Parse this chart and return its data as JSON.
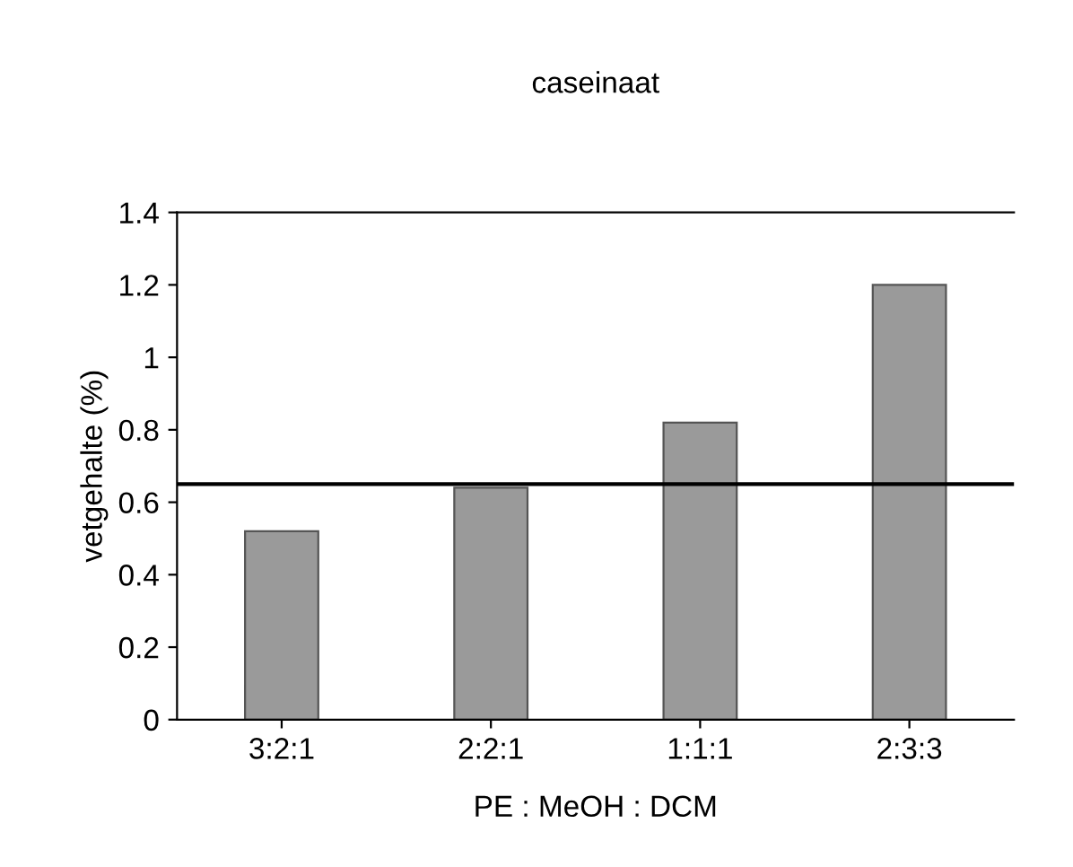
{
  "chart_data": {
    "type": "bar",
    "title": "caseinaat",
    "xlabel": "PE : MeOH : DCM",
    "ylabel": "vetgehalte (%)",
    "categories": [
      "3:2:1",
      "2:2:1",
      "1:1:1",
      "2:3:3"
    ],
    "values": [
      0.52,
      0.64,
      0.82,
      1.2
    ],
    "color": "#9a9a9a",
    "ylim": [
      0,
      1.4
    ],
    "yticks": [
      0,
      0.2,
      0.4,
      0.6,
      0.8,
      1,
      1.2,
      1.4
    ],
    "ref_lines": [
      {
        "axis": "y",
        "value": 0.65,
        "color": "#000000"
      }
    ],
    "grid": false,
    "legend": false
  }
}
